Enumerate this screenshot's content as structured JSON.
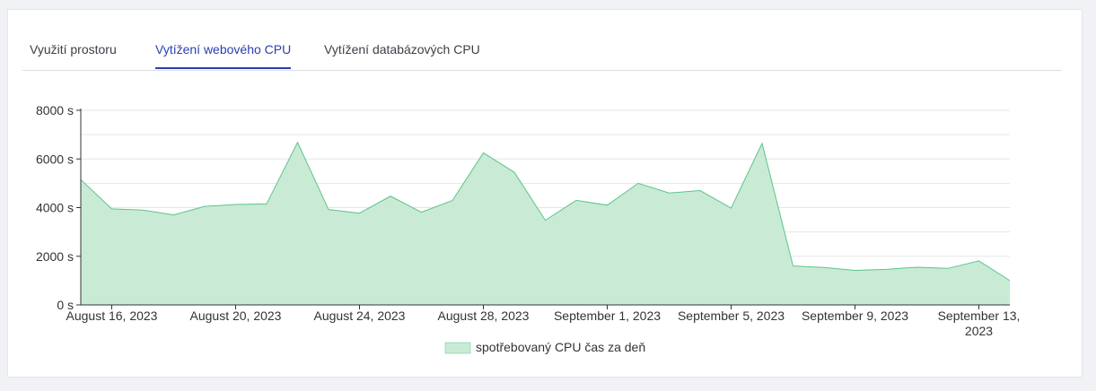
{
  "tabs": [
    {
      "label": "Využití prostoru",
      "active": false
    },
    {
      "label": "Vytížení webového CPU",
      "active": true
    },
    {
      "label": "Vytížení databázových CPU",
      "active": false
    }
  ],
  "colors": {
    "area_fill": "#c9ebd6",
    "area_line": "#5cc48a",
    "grid": "#e6e6e6",
    "axis": "#333333",
    "tab_active": "#2a3fb0"
  },
  "chart_data": {
    "type": "area",
    "x_type": "date",
    "x": [
      "2023-08-15",
      "2023-08-16",
      "2023-08-17",
      "2023-08-18",
      "2023-08-19",
      "2023-08-20",
      "2023-08-21",
      "2023-08-22",
      "2023-08-23",
      "2023-08-24",
      "2023-08-25",
      "2023-08-26",
      "2023-08-27",
      "2023-08-28",
      "2023-08-29",
      "2023-08-30",
      "2023-08-31",
      "2023-09-01",
      "2023-09-02",
      "2023-09-03",
      "2023-09-04",
      "2023-09-05",
      "2023-09-06",
      "2023-09-07",
      "2023-09-08",
      "2023-09-09",
      "2023-09-10",
      "2023-09-11",
      "2023-09-12",
      "2023-09-13",
      "2023-09-14"
    ],
    "series": [
      {
        "name": "spotřebovaný CPU čas za deň",
        "values": [
          5150,
          3950,
          3900,
          3700,
          4050,
          4130,
          4150,
          6680,
          3920,
          3770,
          4470,
          3810,
          4290,
          6250,
          5450,
          3480,
          4300,
          4100,
          5000,
          4600,
          4700,
          3980,
          6640,
          1600,
          1540,
          1420,
          1460,
          1550,
          1500,
          1810,
          1000
        ]
      }
    ],
    "ylim": [
      0,
      8000
    ],
    "y_ticks": [
      0,
      2000,
      4000,
      6000,
      8000
    ],
    "y_tick_labels": [
      "0 s",
      "2000 s",
      "4000 s",
      "6000 s",
      "8000 s"
    ],
    "x_ticks": [
      "2023-08-16",
      "2023-08-20",
      "2023-08-24",
      "2023-08-28",
      "2023-09-01",
      "2023-09-05",
      "2023-09-09",
      "2023-09-13"
    ],
    "x_tick_labels": [
      [
        "August 16, 2023"
      ],
      [
        "August 20, 2023"
      ],
      [
        "August 24, 2023"
      ],
      [
        "August 28, 2023"
      ],
      [
        "September 1, 2023"
      ],
      [
        "September 5, 2023"
      ],
      [
        "September 9, 2023"
      ],
      [
        "September 13,",
        "2023"
      ]
    ],
    "grid": true,
    "legend": "bottom-center"
  }
}
